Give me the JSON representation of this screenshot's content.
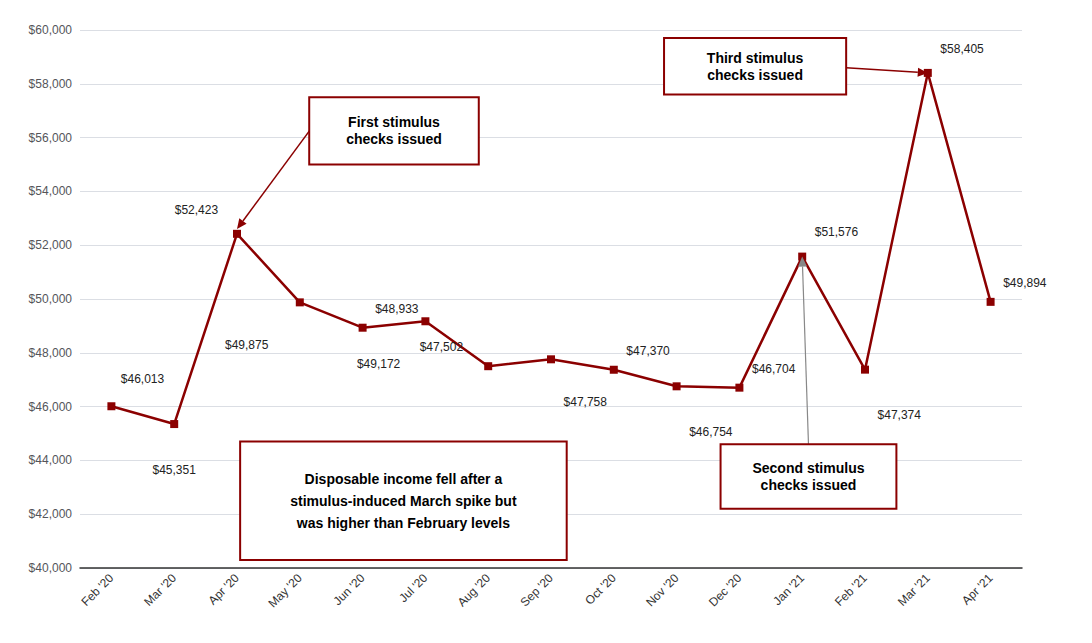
{
  "chart_data": {
    "type": "line",
    "categories": [
      "Feb '20",
      "Mar '20",
      "Apr '20",
      "May '20",
      "Jun '20",
      "Jul '20",
      "Aug '20",
      "Sep '20",
      "Oct '20",
      "Nov '20",
      "Dec '20",
      "Jan '21",
      "Feb '21",
      "Mar '21",
      "Apr '21"
    ],
    "values": [
      46013,
      45351,
      52423,
      49875,
      48933,
      49172,
      47502,
      47758,
      47370,
      46754,
      46704,
      51576,
      47374,
      58405,
      49894
    ],
    "value_labels": [
      "$46,013",
      "$45,351",
      "$52,423",
      "$49,875",
      "$48,933",
      "$49,172",
      "$47,502",
      "$47,758",
      "$47,370",
      "$46,754",
      "$46,704",
      "$51,576",
      "$47,374",
      "$58,405",
      "$49,894"
    ],
    "color": "#8B0000",
    "marker": "square",
    "data_labels": true,
    "ylim": [
      40000,
      60000
    ],
    "yticks": [
      {
        "value": 40000,
        "label": "$40,000"
      },
      {
        "value": 42000,
        "label": "$42,000"
      },
      {
        "value": 44000,
        "label": "$44,000"
      },
      {
        "value": 46000,
        "label": "$46,000"
      },
      {
        "value": 48000,
        "label": "$48,000"
      },
      {
        "value": 50000,
        "label": "$50,000"
      },
      {
        "value": 52000,
        "label": "$52,000"
      },
      {
        "value": 54000,
        "label": "$54,000"
      },
      {
        "value": 56000,
        "label": "$56,000"
      },
      {
        "value": 58000,
        "label": "$58,000"
      },
      {
        "value": 60000,
        "label": "$60,000"
      }
    ],
    "grid": true,
    "annotations": [
      "First stimulus\nchecks issued",
      "Disposable income fell after a\nstimulus-induced March spike but\nwas higher than February levels",
      "Third stimulus\nchecks issued",
      "Second stimulus\nchecks issued"
    ]
  }
}
